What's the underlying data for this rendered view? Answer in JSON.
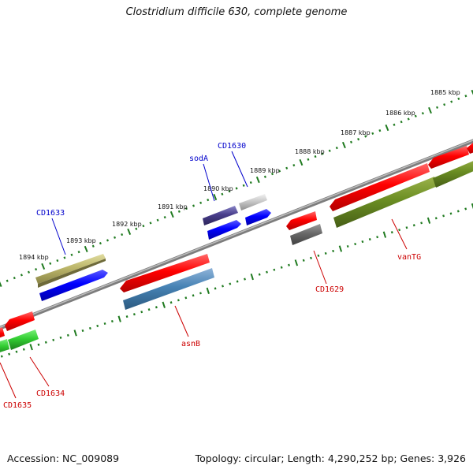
{
  "title": "Clostridium difficile 630, complete genome",
  "footer": {
    "accession": "Accession: NC_009089",
    "summary": "Topology: circular; Length: 4,290,252 bp; Genes: 3,926"
  },
  "colors": {
    "backbone": "#8c8c8c",
    "tick": "#1f7a1f",
    "label_forward": "#0000cc",
    "label_reverse": "#cc0000"
  },
  "kbp_labels": [
    "1885 kbp",
    "1886 kbp",
    "1887 kbp",
    "1888 kbp",
    "1889 kbp",
    "1890 kbp",
    "1891 kbp",
    "1892 kbp",
    "1893 kbp",
    "1894 kbp"
  ],
  "gene_labels": {
    "sodA": "sodA",
    "CD1630": "CD1630",
    "CD1633": "CD1633",
    "vanTG": "vanTG",
    "CD1629": "CD1629",
    "asnB": "asnB",
    "CD1634": "CD1634",
    "CD1635": "CD1635"
  }
}
